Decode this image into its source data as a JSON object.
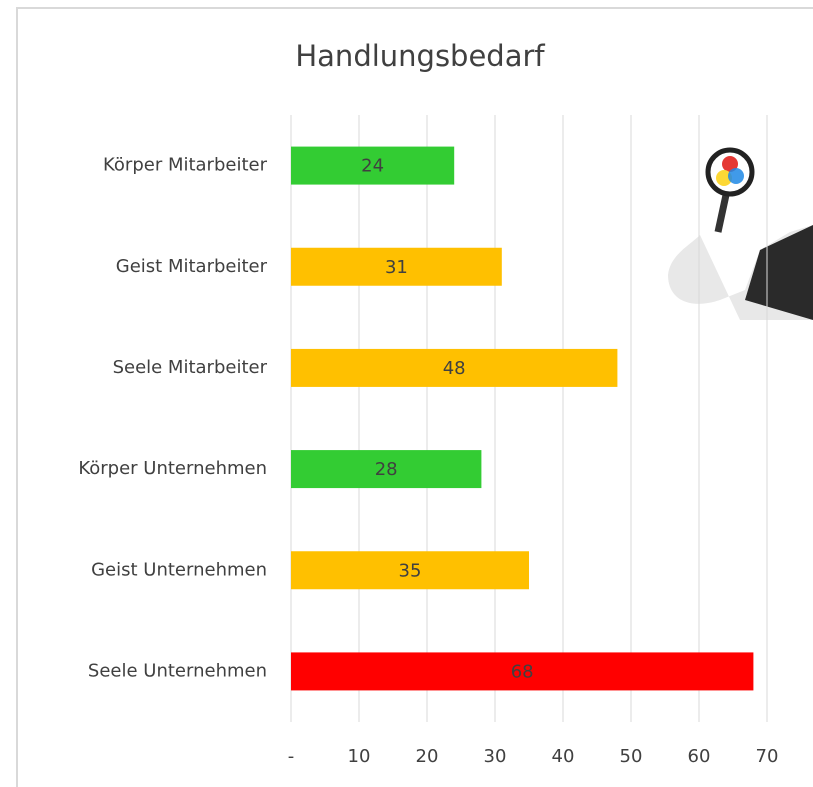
{
  "chart_data": {
    "type": "bar",
    "title": "Handlungsbedarf",
    "categories": [
      "Körper Mitarbeiter",
      "Geist Mitarbeiter",
      "Seele Mitarbeiter",
      "Körper Unternehmen",
      "Geist Unternehmen",
      "Seele Unternehmen"
    ],
    "values": [
      24,
      31,
      48,
      28,
      35,
      68
    ],
    "colors": [
      "#33cc33",
      "#ffc000",
      "#ffc000",
      "#33cc33",
      "#ffc000",
      "#ff0000"
    ],
    "xlim": [
      0,
      70
    ],
    "xticks": [
      {
        "value": 0,
        "label": "-"
      },
      10,
      20,
      30,
      40,
      50,
      60,
      70
    ],
    "grid": true
  }
}
